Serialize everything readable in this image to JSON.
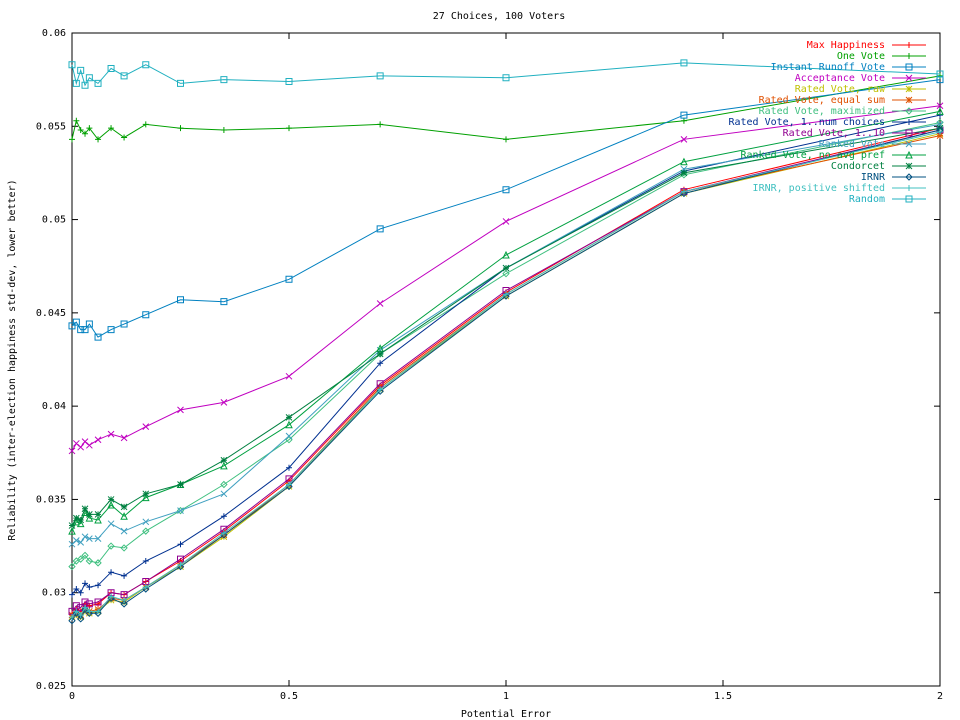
{
  "chart_data": {
    "type": "line",
    "title": "27 Choices, 100 Voters",
    "xlabel": "Potential Error",
    "ylabel": "Reliability (inter-election happiness std-dev, lower better)",
    "xlim": [
      0,
      2
    ],
    "ylim": [
      0.025,
      0.06
    ],
    "x_ticks": [
      0,
      0.5,
      1,
      1.5,
      2
    ],
    "x_tick_labels": [
      "0",
      "0.5",
      "1",
      "1.5",
      "2"
    ],
    "y_ticks": [
      0.025,
      0.03,
      0.035,
      0.04,
      0.045,
      0.05,
      0.055,
      0.06
    ],
    "y_tick_labels": [
      "0.025",
      "0.03",
      "0.035",
      "0.04",
      "0.045",
      "0.05",
      "0.055",
      "0.06"
    ],
    "grid": false,
    "legend_position": "top-right",
    "x": [
      0,
      0.01,
      0.02,
      0.03,
      0.04,
      0.06,
      0.09,
      0.12,
      0.17,
      0.25,
      0.35,
      0.5,
      0.71,
      1.0,
      1.41,
      2.0
    ],
    "series": [
      {
        "name": "Max Happiness",
        "color": "#ff0000",
        "marker": "plus",
        "values": [
          0.0289,
          0.0291,
          0.029,
          0.0294,
          0.0293,
          0.0294,
          0.03,
          0.0299,
          0.0306,
          0.0317,
          0.0333,
          0.036,
          0.0411,
          0.0461,
          0.0516,
          0.0549
        ]
      },
      {
        "name": "One Vote",
        "color": "#00a000",
        "marker": "plus",
        "values": [
          0.0543,
          0.0553,
          0.0548,
          0.0546,
          0.0549,
          0.0543,
          0.0549,
          0.0544,
          0.0551,
          0.0549,
          0.0548,
          0.0549,
          0.0551,
          0.0543,
          0.0553,
          0.0577
        ]
      },
      {
        "name": "Instant Runoff Vote",
        "color": "#0080c0",
        "marker": "square",
        "values": [
          0.0443,
          0.0445,
          0.0441,
          0.0441,
          0.0444,
          0.0437,
          0.0441,
          0.0444,
          0.0449,
          0.0457,
          0.0456,
          0.0468,
          0.0495,
          0.0516,
          0.0556,
          0.0575
        ]
      },
      {
        "name": "Acceptance Vote",
        "color": "#c000c0",
        "marker": "x",
        "values": [
          0.0376,
          0.038,
          0.0378,
          0.0381,
          0.0379,
          0.0382,
          0.0385,
          0.0383,
          0.0389,
          0.0398,
          0.0402,
          0.0416,
          0.0455,
          0.0499,
          0.0543,
          0.0561
        ]
      },
      {
        "name": "Rated Vote, raw",
        "color": "#c0c000",
        "marker": "star",
        "values": [
          0.0287,
          0.0288,
          0.0287,
          0.029,
          0.0289,
          0.029,
          0.0296,
          0.0295,
          0.0303,
          0.0314,
          0.033,
          0.0357,
          0.0409,
          0.0459,
          0.0514,
          0.0546
        ]
      },
      {
        "name": "Rated Vote, equal sum",
        "color": "#e05000",
        "marker": "star",
        "values": [
          0.0288,
          0.0289,
          0.0288,
          0.0291,
          0.029,
          0.0291,
          0.0297,
          0.0296,
          0.0303,
          0.0315,
          0.0331,
          0.0358,
          0.041,
          0.046,
          0.0515,
          0.0545
        ]
      },
      {
        "name": "Rated Vote, maximized",
        "color": "#40c080",
        "marker": "diamond",
        "values": [
          0.0314,
          0.0317,
          0.0318,
          0.032,
          0.0317,
          0.0316,
          0.0325,
          0.0324,
          0.0333,
          0.0344,
          0.0358,
          0.0382,
          0.0428,
          0.0471,
          0.0524,
          0.0552
        ]
      },
      {
        "name": "Rated Vote, 1..num choices",
        "color": "#003090",
        "marker": "plus",
        "values": [
          0.0299,
          0.0302,
          0.03,
          0.0305,
          0.0303,
          0.0304,
          0.0311,
          0.0309,
          0.0317,
          0.0326,
          0.0341,
          0.0367,
          0.0423,
          0.0474,
          0.0526,
          0.0556
        ]
      },
      {
        "name": "Rated Vote, 1..10",
        "color": "#900090",
        "marker": "square",
        "values": [
          0.029,
          0.0293,
          0.0292,
          0.0295,
          0.0294,
          0.0295,
          0.03,
          0.0299,
          0.0306,
          0.0318,
          0.0334,
          0.0361,
          0.0412,
          0.0462,
          0.0515,
          0.0548
        ]
      },
      {
        "name": "Ranked Vote",
        "color": "#40a0c0",
        "marker": "x",
        "values": [
          0.0326,
          0.0328,
          0.0327,
          0.033,
          0.0329,
          0.0329,
          0.0337,
          0.0333,
          0.0338,
          0.0344,
          0.0353,
          0.0384,
          0.043,
          0.0474,
          0.0527,
          0.0551
        ]
      },
      {
        "name": "Ranked Vote, no avg pref",
        "color": "#00a040",
        "marker": "triangle",
        "values": [
          0.0333,
          0.0338,
          0.0337,
          0.0343,
          0.034,
          0.0339,
          0.0347,
          0.0341,
          0.0351,
          0.0358,
          0.0368,
          0.039,
          0.0431,
          0.0481,
          0.0531,
          0.0558
        ]
      },
      {
        "name": "Condorcet",
        "color": "#008040",
        "marker": "star",
        "values": [
          0.0336,
          0.034,
          0.0339,
          0.0345,
          0.0342,
          0.0342,
          0.035,
          0.0346,
          0.0353,
          0.0358,
          0.0371,
          0.0394,
          0.0428,
          0.0474,
          0.0525,
          0.0549
        ]
      },
      {
        "name": "IRNR",
        "color": "#005080",
        "marker": "diamond",
        "values": [
          0.0285,
          0.0289,
          0.0286,
          0.0291,
          0.0289,
          0.0289,
          0.0297,
          0.0294,
          0.0302,
          0.0314,
          0.0331,
          0.0357,
          0.0408,
          0.0459,
          0.0514,
          0.0548
        ]
      },
      {
        "name": "IRNR, positive shifted",
        "color": "#40c0c0",
        "marker": "plus",
        "values": [
          0.0287,
          0.029,
          0.0288,
          0.0292,
          0.029,
          0.029,
          0.0298,
          0.0296,
          0.0303,
          0.0315,
          0.0332,
          0.0358,
          0.0409,
          0.046,
          0.0515,
          0.0547
        ]
      },
      {
        "name": "Random",
        "color": "#20b0c0",
        "marker": "square",
        "values": [
          0.0583,
          0.0573,
          0.058,
          0.0572,
          0.0576,
          0.0573,
          0.0581,
          0.0577,
          0.0583,
          0.0573,
          0.0575,
          0.0574,
          0.0577,
          0.0576,
          0.0584,
          0.0578
        ]
      }
    ]
  }
}
